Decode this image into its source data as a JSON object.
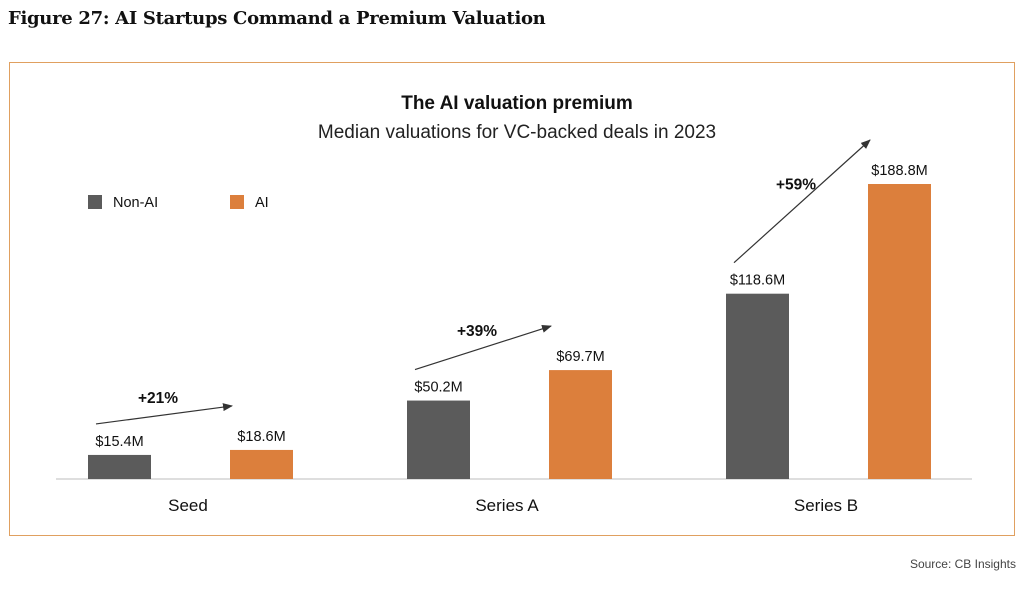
{
  "figure_title": "Figure 27: AI Startups Command a Premium Valuation",
  "source": "Source: CB Insights",
  "colors": {
    "non_ai": "#5b5b5b",
    "ai": "#dc7f3c",
    "frame": "#e0a060"
  },
  "chart_data": {
    "type": "bar",
    "title": "The AI valuation premium",
    "subtitle": "Median valuations for VC-backed deals in 2023",
    "categories": [
      "Seed",
      "Series A",
      "Series B"
    ],
    "series": [
      {
        "name": "Non-AI",
        "values": [
          15.4,
          50.2,
          118.6
        ],
        "labels": [
          "$15.4M",
          "$50.2M",
          "$118.6M"
        ]
      },
      {
        "name": "AI",
        "values": [
          18.6,
          69.7,
          188.8
        ],
        "labels": [
          "$18.6M",
          "$69.7M",
          "$188.8M"
        ]
      }
    ],
    "annotations": [
      "+21%",
      "+39%",
      "+59%"
    ],
    "legend_position": "top-left",
    "grid": false,
    "ylim": [
      0,
      188.8
    ]
  }
}
